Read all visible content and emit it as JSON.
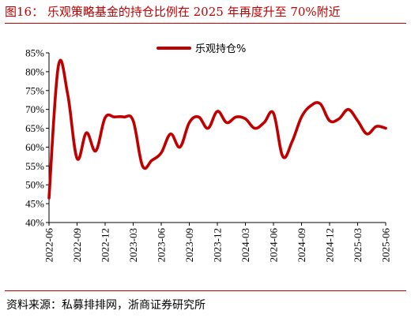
{
  "figure_title": "图16： 乐观策略基金的持仓比例在 2025 年再度升至 70%附近",
  "source_note": "资料来源：私募排排网，浙商证券研究所",
  "colors": {
    "accent": "#c00000",
    "series_line": "#c00000",
    "axis": "#000000"
  },
  "chart_data": {
    "type": "line",
    "title": "",
    "xlabel": "",
    "ylabel": "",
    "ylim": [
      40,
      85
    ],
    "yticks": [
      "40%",
      "45%",
      "50%",
      "55%",
      "60%",
      "65%",
      "70%",
      "75%",
      "80%",
      "85%"
    ],
    "xticks": [
      "2022-06",
      "2022-09",
      "2022-12",
      "2023-03",
      "2023-06",
      "2023-09",
      "2023-12",
      "2024-03",
      "2024-06",
      "2024-09",
      "2024-12",
      "2025-03",
      "2025-06"
    ],
    "grid": false,
    "legend": "top-center",
    "x": [
      "2022-06",
      "2022-07",
      "2022-08",
      "2022-09",
      "2022-10",
      "2022-11",
      "2022-12",
      "2023-01",
      "2023-02",
      "2023-03",
      "2023-04",
      "2023-05",
      "2023-06",
      "2023-07",
      "2023-08",
      "2023-09",
      "2023-10",
      "2023-11",
      "2023-12",
      "2024-01",
      "2024-02",
      "2024-03",
      "2024-04",
      "2024-05",
      "2024-06",
      "2024-07",
      "2024-08",
      "2024-09",
      "2024-10",
      "2024-11",
      "2024-12",
      "2025-01",
      "2025-02",
      "2025-03",
      "2025-04",
      "2025-05",
      "2025-06"
    ],
    "series": [
      {
        "name": "乐观持仓%",
        "values": [
          46.5,
          81.5,
          74,
          57,
          63.8,
          59,
          67.8,
          68,
          68,
          67,
          55,
          56.5,
          58.5,
          63.5,
          60,
          66.5,
          68,
          65,
          69.5,
          66.5,
          68,
          67.5,
          65,
          66.5,
          69,
          57.5,
          61.5,
          68,
          71,
          71.5,
          67,
          67.5,
          70,
          67,
          63.5,
          65.5,
          65
        ]
      }
    ]
  }
}
